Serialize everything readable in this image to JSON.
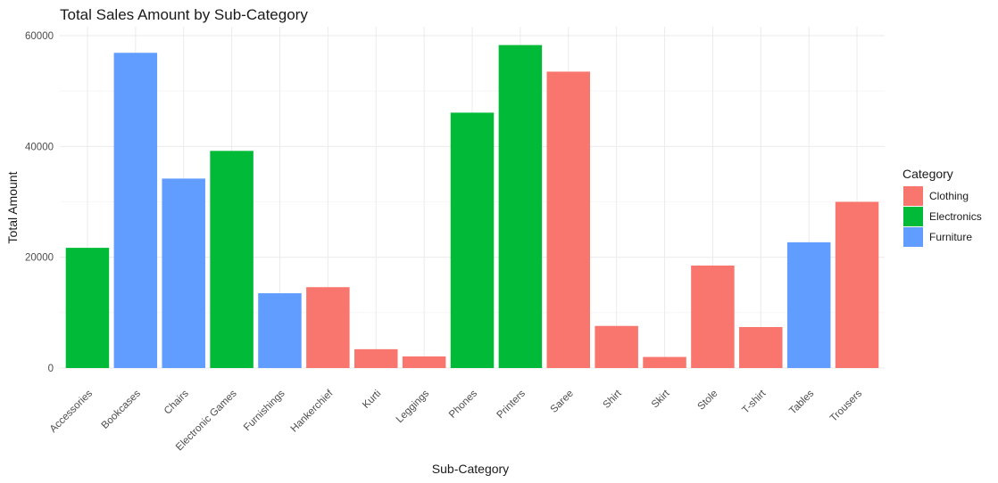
{
  "chart_data": {
    "type": "bar",
    "title": "Total Sales Amount by Sub-Category",
    "xlabel": "Sub-Category",
    "ylabel": "Total Amount",
    "ylim": [
      0,
      60000
    ],
    "yticks": [
      0,
      20000,
      40000,
      60000
    ],
    "grid": true,
    "legend": {
      "title": "Category",
      "placement": "right",
      "entries": [
        {
          "name": "Clothing",
          "color": "#F8766D"
        },
        {
          "name": "Electronics",
          "color": "#00BA38"
        },
        {
          "name": "Furniture",
          "color": "#619CFF"
        }
      ]
    },
    "categories": [
      "Accessories",
      "Bookcases",
      "Chairs",
      "Electronic Games",
      "Furnishings",
      "Hankerchief",
      "Kurti",
      "Leggings",
      "Phones",
      "Printers",
      "Saree",
      "Shirt",
      "Skirt",
      "Stole",
      "T-shirt",
      "Tables",
      "Trousers"
    ],
    "values": [
      21700,
      56900,
      34200,
      39200,
      13500,
      14600,
      3400,
      2100,
      46100,
      58300,
      53500,
      7600,
      2000,
      18500,
      7400,
      22700,
      30000
    ],
    "groups": [
      "Electronics",
      "Furniture",
      "Furniture",
      "Electronics",
      "Furniture",
      "Clothing",
      "Clothing",
      "Clothing",
      "Electronics",
      "Electronics",
      "Clothing",
      "Clothing",
      "Clothing",
      "Clothing",
      "Clothing",
      "Furniture",
      "Clothing"
    ]
  }
}
